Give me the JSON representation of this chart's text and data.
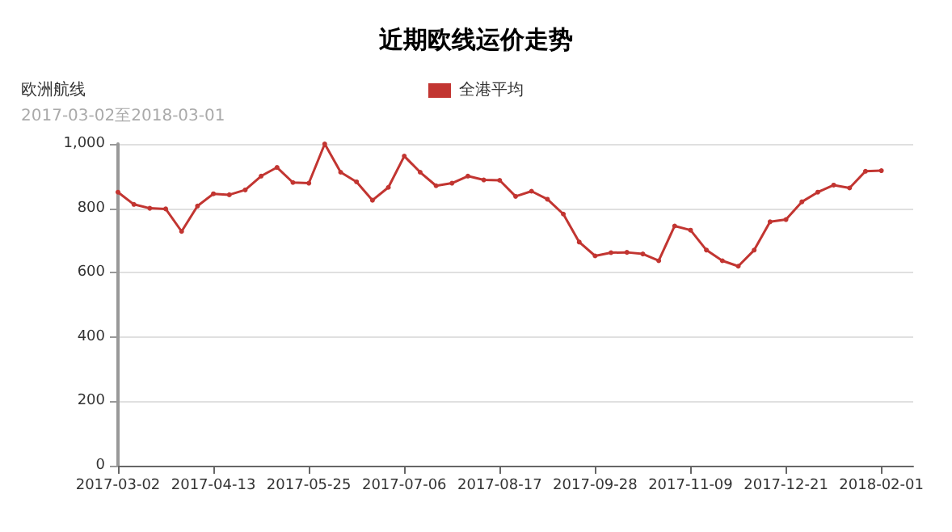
{
  "chart_data": {
    "type": "line",
    "title": "近期欧线运价走势",
    "subtitle": "欧洲航线",
    "annotations": [
      "2017-03-02至2018-03-01"
    ],
    "categories": [
      "2017-03-02",
      null,
      null,
      null,
      null,
      null,
      "2017-04-13",
      null,
      null,
      null,
      null,
      null,
      "2017-05-25",
      null,
      null,
      null,
      null,
      null,
      "2017-07-06",
      null,
      null,
      null,
      null,
      null,
      "2017-08-17",
      null,
      null,
      null,
      null,
      null,
      "2017-09-28",
      null,
      null,
      null,
      null,
      null,
      "2017-11-09",
      null,
      null,
      null,
      null,
      null,
      "2017-12-21",
      null,
      null,
      null,
      null,
      null,
      "2018-02-01",
      null,
      null
    ],
    "series": [
      {
        "name": "全港平均",
        "color": "#c23531",
        "values": [
          850,
          812,
          800,
          798,
          728,
          807,
          845,
          842,
          857,
          900,
          927,
          880,
          878,
          1000,
          912,
          882,
          825,
          865,
          962,
          912,
          870,
          878,
          900,
          888,
          887,
          837,
          853,
          828,
          782,
          695,
          652,
          662,
          663,
          658,
          637,
          745,
          732,
          670,
          637,
          620,
          670,
          758,
          765,
          820,
          850,
          872,
          863,
          915,
          917,
          null,
          null
        ]
      }
    ],
    "ylim": [
      0,
      1000
    ],
    "yticks": [
      0,
      200,
      400,
      600,
      800,
      {
        "value": 1000,
        "label": "1,000"
      }
    ],
    "grid": "y",
    "legend": "top",
    "marker": "circle",
    "line_style": "solid"
  }
}
